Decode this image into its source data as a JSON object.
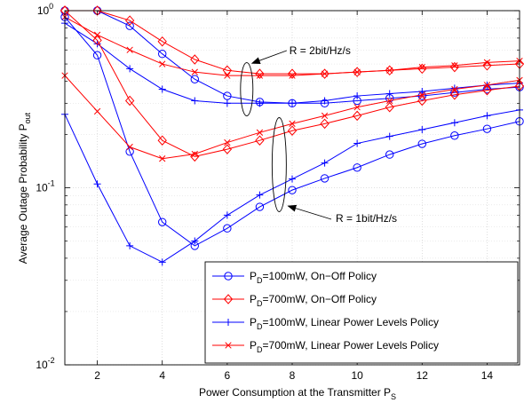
{
  "chart_data": {
    "type": "line",
    "xlabel": "Power Consumption at the Transmitter P",
    "xlabel_sub": "S",
    "ylabel": "Average Outage Probability P",
    "ylabel_sub": "out",
    "xlim": [
      1,
      15
    ],
    "ylim": [
      0.01,
      1
    ],
    "yscale": "log",
    "grid": true,
    "x_ticks": [
      2,
      4,
      6,
      8,
      10,
      12,
      14
    ],
    "x_tick_labels": [
      "2",
      "4",
      "6",
      "8",
      "10",
      "12",
      "14"
    ],
    "y_ticks": [
      0.01,
      0.1,
      1
    ],
    "y_tick_labels": [
      {
        "base": "10",
        "exp": "-2"
      },
      {
        "base": "10",
        "exp": "-1"
      },
      {
        "base": "10",
        "exp": "0"
      }
    ],
    "legend_position": "bottom-right",
    "series": [
      {
        "name_main": "P",
        "name_sub": "D",
        "name_rest": "=100mW, On−Off Policy",
        "color": "#0000ff",
        "marker": "circle",
        "group": "R=2",
        "x": [
          1,
          2,
          3,
          4,
          5,
          6,
          7,
          8,
          9,
          10,
          11,
          12,
          13,
          14,
          15
        ],
        "y": [
          1.0,
          1.0,
          0.82,
          0.57,
          0.41,
          0.33,
          0.305,
          0.3,
          0.3,
          0.31,
          0.32,
          0.33,
          0.345,
          0.36,
          0.37
        ]
      },
      {
        "name_main": "P",
        "name_sub": "D",
        "name_rest": "=700mW, On−Off Policy",
        "color": "#ff0000",
        "marker": "diamond",
        "group": "R=2",
        "x": [
          1,
          2,
          3,
          4,
          5,
          6,
          7,
          8,
          9,
          10,
          11,
          12,
          13,
          14,
          15
        ],
        "y": [
          1.0,
          1.0,
          0.88,
          0.67,
          0.53,
          0.46,
          0.44,
          0.44,
          0.44,
          0.45,
          0.46,
          0.47,
          0.48,
          0.49,
          0.5
        ]
      },
      {
        "name_main": "P",
        "name_sub": "D",
        "name_rest": "=100mW, Linear Power Levels Policy",
        "color": "#0000ff",
        "marker": "plus",
        "group": "R=2",
        "x": [
          1,
          2,
          3,
          4,
          5,
          6,
          7,
          8,
          9,
          10,
          11,
          12,
          13,
          14,
          15
        ],
        "y": [
          0.85,
          0.65,
          0.47,
          0.36,
          0.31,
          0.3,
          0.3,
          0.3,
          0.31,
          0.33,
          0.34,
          0.35,
          0.365,
          0.38,
          0.39
        ]
      },
      {
        "name_main": "P",
        "name_sub": "D",
        "name_rest": "=700mW, Linear Power Levels Policy",
        "color": "#ff0000",
        "marker": "x",
        "group": "R=2",
        "x": [
          1,
          2,
          3,
          4,
          5,
          6,
          7,
          8,
          9,
          10,
          11,
          12,
          13,
          14,
          15
        ],
        "y": [
          0.92,
          0.73,
          0.6,
          0.5,
          0.45,
          0.43,
          0.43,
          0.43,
          0.44,
          0.45,
          0.46,
          0.48,
          0.49,
          0.51,
          0.52
        ]
      },
      {
        "name_main": "P",
        "name_sub": "D",
        "name_rest": "=100mW, On−Off Policy",
        "color": "#0000ff",
        "marker": "circle",
        "group": "R=1",
        "x": [
          1,
          2,
          3,
          4,
          5,
          6,
          7,
          8,
          9,
          10,
          11,
          12,
          13,
          14,
          15
        ],
        "y": [
          0.92,
          0.56,
          0.16,
          0.064,
          0.047,
          0.059,
          0.078,
          0.097,
          0.113,
          0.13,
          0.154,
          0.177,
          0.197,
          0.215,
          0.237
        ]
      },
      {
        "name_main": "P",
        "name_sub": "D",
        "name_rest": "=700mW, On−Off Policy",
        "color": "#ff0000",
        "marker": "diamond",
        "group": "R=1",
        "x": [
          1,
          2,
          3,
          4,
          5,
          6,
          7,
          8,
          9,
          10,
          11,
          12,
          13,
          14,
          15
        ],
        "y": [
          1.0,
          0.68,
          0.31,
          0.185,
          0.15,
          0.165,
          0.185,
          0.21,
          0.23,
          0.255,
          0.285,
          0.31,
          0.335,
          0.355,
          0.375
        ]
      },
      {
        "name_main": "P",
        "name_sub": "D",
        "name_rest": "=100mW, Linear Power Levels Policy",
        "color": "#0000ff",
        "marker": "plus",
        "group": "R=1",
        "x": [
          1,
          2,
          3,
          4,
          5,
          6,
          7,
          8,
          9,
          10,
          11,
          12,
          13,
          14,
          15
        ],
        "y": [
          0.26,
          0.105,
          0.047,
          0.038,
          0.05,
          0.07,
          0.091,
          0.112,
          0.138,
          0.178,
          0.195,
          0.213,
          0.233,
          0.255,
          0.275
        ]
      },
      {
        "name_main": "P",
        "name_sub": "D",
        "name_rest": "=700mW, Linear Power Levels Policy",
        "color": "#ff0000",
        "marker": "x",
        "group": "R=1",
        "x": [
          1,
          2,
          3,
          4,
          5,
          6,
          7,
          8,
          9,
          10,
          11,
          12,
          13,
          14,
          15
        ],
        "y": [
          0.43,
          0.27,
          0.17,
          0.146,
          0.155,
          0.18,
          0.205,
          0.23,
          0.255,
          0.285,
          0.31,
          0.335,
          0.36,
          0.38,
          0.405
        ]
      }
    ],
    "legend": [
      {
        "main": "P",
        "sub": "D",
        "rest": "=100mW, On−Off Policy",
        "color": "#0000ff",
        "marker": "circle"
      },
      {
        "main": "P",
        "sub": "D",
        "rest": "=700mW, On−Off Policy",
        "color": "#ff0000",
        "marker": "diamond"
      },
      {
        "main": "P",
        "sub": "D",
        "rest": "=100mW, Linear Power Levels Policy",
        "color": "#0000ff",
        "marker": "plus"
      },
      {
        "main": "P",
        "sub": "D",
        "rest": "=700mW, Linear Power Levels Policy",
        "color": "#ff0000",
        "marker": "x"
      }
    ],
    "annotations": [
      {
        "text": "R = 2bit/Hz/s",
        "ellipse_x": 6.6,
        "ellipse_y": 0.36,
        "arrow_to_x": 6.6,
        "arrow_to_y": 0.46
      },
      {
        "text": "R = 1bit/Hz/s",
        "ellipse_x": 7.6,
        "ellipse_y": 0.135,
        "arrow_to_x": 7.8,
        "arrow_to_y": 0.085
      }
    ]
  }
}
